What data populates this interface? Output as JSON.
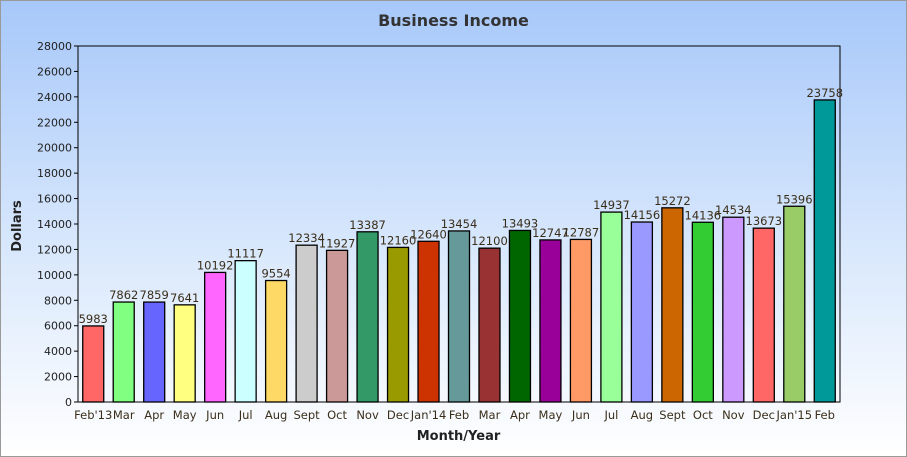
{
  "chart_data": {
    "type": "bar",
    "title": "Business Income",
    "xlabel": "Month/Year",
    "ylabel": "Dollars",
    "ylim": [
      0,
      28000
    ],
    "ytick_step": 2000,
    "grid": false,
    "categories": [
      "Feb'13",
      "Mar",
      "Apr",
      "May",
      "Jun",
      "Jul",
      "Aug",
      "Sept",
      "Oct",
      "Nov",
      "Dec",
      "Jan'14",
      "Feb",
      "Mar",
      "Apr",
      "May",
      "Jun",
      "Jul",
      "Aug",
      "Sept",
      "Oct",
      "Nov",
      "Dec",
      "Jan'15",
      "Feb"
    ],
    "values": [
      5983,
      7862,
      7859,
      7641,
      10192,
      11117,
      9554,
      12334,
      11927,
      13387,
      12160,
      12640,
      13454,
      12100,
      13493,
      12747,
      12787,
      14937,
      14156,
      15272,
      14136,
      14534,
      13673,
      15396,
      23758
    ],
    "colors": [
      "#ff6666",
      "#80ff80",
      "#6666ff",
      "#ffff80",
      "#ff66ff",
      "#ccffff",
      "#ffd966",
      "#cccccc",
      "#cc9999",
      "#339966",
      "#999900",
      "#cc3300",
      "#669999",
      "#993333",
      "#006600",
      "#990099",
      "#ff9966",
      "#99ff99",
      "#9999ff",
      "#cc6600",
      "#33cc33",
      "#cc99ff",
      "#ff6666",
      "#99cc66",
      "#009999"
    ]
  }
}
